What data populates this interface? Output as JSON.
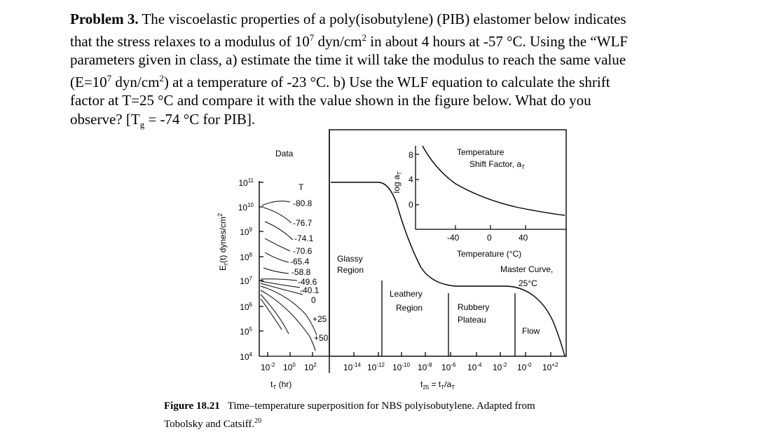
{
  "problem": {
    "label": "Problem 3.",
    "l1": " The viscoelastic properties of a poly(isobutylene) (PIB) elastomer below indicates",
    "l2a": "that the stress relaxes to a modulus of 10",
    "l2sup1": "7",
    "l2b": " dyn/cm",
    "l2sup2": "2",
    "l2c": " in about 4 hours at -57 °C. Using the “WLF",
    "l3": "parameters given in class, a) estimate the time it will take the modulus to reach the same value",
    "l4a": "(E=10",
    "l4sup1": "7",
    "l4b": " dyn/cm",
    "l4sup2": "2",
    "l4c": ") at a temperature of -23 °C. b) Use the WLF equation to calculate the shrift",
    "l5": "factor at T=25 °C and compare it with the value shown in the figure below. What do you",
    "l6a": "observe? [T",
    "l6sub": "g",
    "l6b": " = -74 °C for PIB]."
  },
  "figure": {
    "ylabel": "E",
    "ylabel_sub": "r",
    "ylabel_rest": "(t) dynes/cm",
    "ylabel_sup": "2",
    "yticks": [
      {
        "base": "10",
        "exp": "11"
      },
      {
        "base": "10",
        "exp": "10"
      },
      {
        "base": "10",
        "exp": "9"
      },
      {
        "base": "10",
        "exp": "8"
      },
      {
        "base": "10",
        "exp": "7"
      },
      {
        "base": "10",
        "exp": "6"
      },
      {
        "base": "10",
        "exp": "5"
      },
      {
        "base": "10",
        "exp": "4"
      }
    ],
    "data_label": "Data",
    "t_label": "T",
    "temps": [
      "-80.8",
      "-76.7",
      "-74.1",
      "-70.6",
      "-65.4",
      "-58.8",
      "-49.6",
      "-40.1",
      "0",
      "+25",
      "+50"
    ],
    "left_xticks": [
      {
        "base": "10",
        "exp": "-2"
      },
      {
        "base": "10",
        "exp": "0"
      },
      {
        "base": "10",
        "exp": "2"
      }
    ],
    "left_xlabel": "t",
    "left_xlabel_sub": "T",
    "left_xlabel_rest": " (hr)",
    "glassy1": "Glassy",
    "glassy2": "Region",
    "leathery1": "Leathery",
    "leathery2": "Region",
    "rubbery1": "Rubbery",
    "rubbery2": "Plateau",
    "flow": "Flow",
    "master1": "Master Curve,",
    "master2": "25°C",
    "right_xticks": [
      {
        "base": "10",
        "exp": "-14"
      },
      {
        "base": "10",
        "exp": "-12"
      },
      {
        "base": "10",
        "exp": "-10"
      },
      {
        "base": "10",
        "exp": "-8"
      },
      {
        "base": "10",
        "exp": "-6"
      },
      {
        "base": "10",
        "exp": "-4"
      },
      {
        "base": "10",
        "exp": "-2"
      },
      {
        "base": "10",
        "exp": "-0"
      },
      {
        "base": "10",
        "exp": "+2"
      }
    ],
    "right_xlabel": "t",
    "right_xlabel_sub": "25",
    "right_xlabel_mid": " = t",
    "right_xlabel_sub2": "T",
    "right_xlabel_rest": "/a",
    "right_xlabel_sub3": "T",
    "inset": {
      "title1": "Temperature",
      "title2": "Shift Factor, a",
      "title2_sub": "T",
      "ylabel": "log a",
      "ylabel_sub": "T",
      "yticks": [
        "8",
        "4",
        "0"
      ],
      "xticks": [
        "-40",
        "0",
        "40"
      ],
      "xlabel": "Temperature (°C)"
    }
  },
  "caption": {
    "label": "Figure 18.21",
    "text": "   Time–temperature superposition for NBS polyisobutylene. Adapted from",
    "line2": "Tobolsky and Catsiff.",
    "ref": "20"
  }
}
